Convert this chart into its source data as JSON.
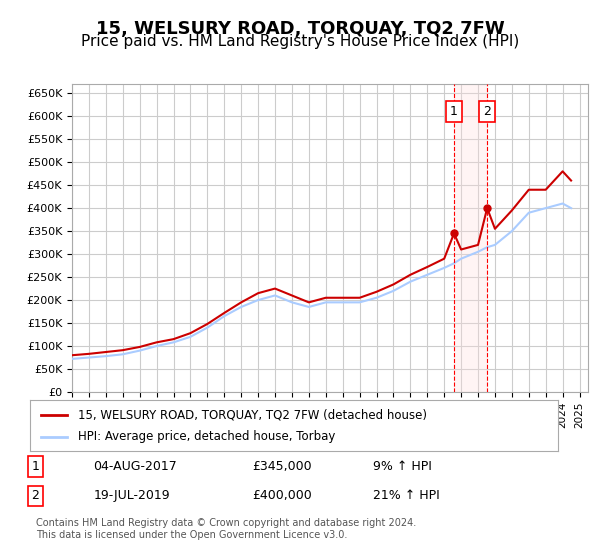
{
  "title": "15, WELSURY ROAD, TORQUAY, TQ2 7FW",
  "subtitle": "Price paid vs. HM Land Registry's House Price Index (HPI)",
  "title_fontsize": 13,
  "subtitle_fontsize": 11,
  "ylabel_ticks": [
    "£0",
    "£50K",
    "£100K",
    "£150K",
    "£200K",
    "£250K",
    "£300K",
    "£350K",
    "£400K",
    "£450K",
    "£500K",
    "£550K",
    "£600K",
    "£650K"
  ],
  "ytick_values": [
    0,
    50000,
    100000,
    150000,
    200000,
    250000,
    300000,
    350000,
    400000,
    450000,
    500000,
    550000,
    600000,
    650000
  ],
  "ylim": [
    0,
    670000
  ],
  "xlim_start": 1995.0,
  "xlim_end": 2025.5,
  "background_color": "#ffffff",
  "grid_color": "#cccccc",
  "hpi_color": "#aaccff",
  "price_color": "#cc0000",
  "transaction1": {
    "date": "04-AUG-2017",
    "price": 345000,
    "label": "1",
    "year": 2017.58,
    "pct": "9%"
  },
  "transaction2": {
    "date": "19-JUL-2019",
    "price": 400000,
    "label": "2",
    "year": 2019.54,
    "pct": "21%"
  },
  "legend_line1": "15, WELSURY ROAD, TORQUAY, TQ2 7FW (detached house)",
  "legend_line2": "HPI: Average price, detached house, Torbay",
  "footnote": "Contains HM Land Registry data © Crown copyright and database right 2024.\nThis data is licensed under the Open Government Licence v3.0.",
  "table_row1": [
    "1",
    "04-AUG-2017",
    "£345,000",
    "9% ↑ HPI"
  ],
  "table_row2": [
    "2",
    "19-JUL-2019",
    "£400,000",
    "21% ↑ HPI"
  ],
  "hpi_data_years": [
    1995,
    1996,
    1997,
    1998,
    1999,
    2000,
    2001,
    2002,
    2003,
    2004,
    2005,
    2006,
    2007,
    2008,
    2009,
    2010,
    2011,
    2012,
    2013,
    2014,
    2015,
    2016,
    2017,
    2017.58,
    2018,
    2019,
    2019.54,
    2020,
    2021,
    2022,
    2023,
    2024,
    2024.5
  ],
  "hpi_data_values": [
    72000,
    75000,
    78000,
    82000,
    90000,
    100000,
    108000,
    120000,
    140000,
    165000,
    185000,
    200000,
    210000,
    195000,
    185000,
    195000,
    195000,
    195000,
    205000,
    220000,
    240000,
    255000,
    270000,
    280000,
    290000,
    305000,
    315000,
    320000,
    350000,
    390000,
    400000,
    410000,
    400000
  ],
  "price_data_years": [
    1995,
    1996,
    1997,
    1998,
    1999,
    2000,
    2001,
    2002,
    2003,
    2004,
    2005,
    2006,
    2007,
    2008,
    2009,
    2010,
    2011,
    2012,
    2013,
    2014,
    2015,
    2016,
    2017,
    2017.58,
    2018,
    2019,
    2019.54,
    2020,
    2021,
    2022,
    2023,
    2024,
    2024.5
  ],
  "price_data_values": [
    80000,
    83000,
    87000,
    91000,
    98000,
    108000,
    115000,
    128000,
    148000,
    172000,
    195000,
    215000,
    225000,
    210000,
    195000,
    205000,
    205000,
    205000,
    218000,
    234000,
    255000,
    272000,
    290000,
    345000,
    310000,
    320000,
    400000,
    355000,
    395000,
    440000,
    440000,
    480000,
    460000
  ]
}
